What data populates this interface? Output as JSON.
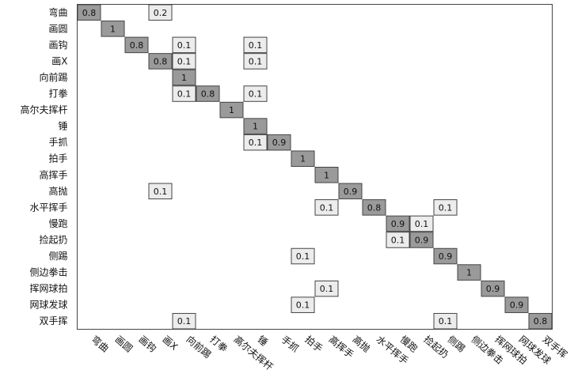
{
  "chart_data": {
    "type": "heatmap",
    "title": "",
    "xlabel": "",
    "ylabel": "",
    "grid": false,
    "labels": [
      "弯曲",
      "画圆",
      "画钩",
      "画X",
      "向前踢",
      "打拳",
      "高尔夫挥杆",
      "锤",
      "手抓",
      "拍手",
      "高挥手",
      "高抛",
      "水平挥手",
      "慢跑",
      "捡起扔",
      "侧踢",
      "侧边拳击",
      "挥网球拍",
      "网球发球",
      "双手挥"
    ],
    "cells": [
      {
        "row": 0,
        "col": 0,
        "value": "0.8"
      },
      {
        "row": 0,
        "col": 3,
        "value": "0.2"
      },
      {
        "row": 1,
        "col": 1,
        "value": "1"
      },
      {
        "row": 2,
        "col": 2,
        "value": "0.8"
      },
      {
        "row": 2,
        "col": 4,
        "value": "0.1"
      },
      {
        "row": 2,
        "col": 7,
        "value": "0.1"
      },
      {
        "row": 3,
        "col": 3,
        "value": "0.8"
      },
      {
        "row": 3,
        "col": 4,
        "value": "0.1"
      },
      {
        "row": 3,
        "col": 7,
        "value": "0.1"
      },
      {
        "row": 4,
        "col": 4,
        "value": "1"
      },
      {
        "row": 5,
        "col": 4,
        "value": "0.1"
      },
      {
        "row": 5,
        "col": 5,
        "value": "0.8"
      },
      {
        "row": 5,
        "col": 7,
        "value": "0.1"
      },
      {
        "row": 6,
        "col": 6,
        "value": "1"
      },
      {
        "row": 7,
        "col": 7,
        "value": "1"
      },
      {
        "row": 8,
        "col": 7,
        "value": "0.1"
      },
      {
        "row": 8,
        "col": 8,
        "value": "0.9"
      },
      {
        "row": 9,
        "col": 9,
        "value": "1"
      },
      {
        "row": 10,
        "col": 10,
        "value": "1"
      },
      {
        "row": 11,
        "col": 3,
        "value": "0.1"
      },
      {
        "row": 11,
        "col": 11,
        "value": "0.9"
      },
      {
        "row": 12,
        "col": 10,
        "value": "0.1"
      },
      {
        "row": 12,
        "col": 12,
        "value": "0.8"
      },
      {
        "row": 12,
        "col": 15,
        "value": "0.1"
      },
      {
        "row": 13,
        "col": 13,
        "value": "0.9"
      },
      {
        "row": 13,
        "col": 14,
        "value": "0.1"
      },
      {
        "row": 14,
        "col": 13,
        "value": "0.1"
      },
      {
        "row": 14,
        "col": 14,
        "value": "0.9"
      },
      {
        "row": 15,
        "col": 9,
        "value": "0.1"
      },
      {
        "row": 15,
        "col": 15,
        "value": "0.9"
      },
      {
        "row": 16,
        "col": 16,
        "value": "1"
      },
      {
        "row": 17,
        "col": 10,
        "value": "0.1"
      },
      {
        "row": 17,
        "col": 17,
        "value": "0.9"
      },
      {
        "row": 18,
        "col": 9,
        "value": "0.1"
      },
      {
        "row": 18,
        "col": 18,
        "value": "0.9"
      },
      {
        "row": 19,
        "col": 4,
        "value": "0.1"
      },
      {
        "row": 19,
        "col": 15,
        "value": "0.1"
      },
      {
        "row": 19,
        "col": 19,
        "value": "0.8"
      }
    ],
    "colors": {
      "high": "#9a9a9a",
      "low": "#ececec",
      "border": "#444444",
      "text": "#111111"
    }
  }
}
